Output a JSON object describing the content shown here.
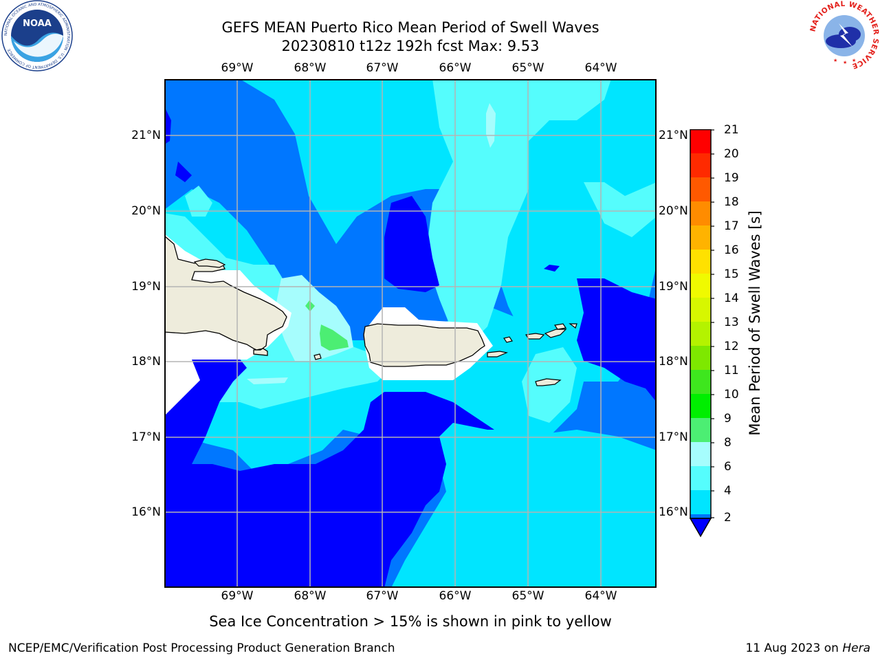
{
  "title": {
    "line1": "GEFS MEAN Puerto Rico Mean Period of Swell Waves",
    "line2": "20230810 t12z 192h fcst   Max: 9.53"
  },
  "map": {
    "lon_labels": [
      "69°W",
      "68°W",
      "67°W",
      "66°W",
      "65°W",
      "64°W"
    ],
    "lat_labels": [
      "21°N",
      "20°N",
      "19°N",
      "18°N",
      "17°N",
      "16°N"
    ],
    "land_color": "#eeecdc"
  },
  "colorbar": {
    "label": "Mean Period of Swell Waves [s]",
    "ticks": [
      "21",
      "20",
      "19",
      "18",
      "17",
      "16",
      "15",
      "14",
      "13",
      "12",
      "11",
      "10",
      "9",
      "8",
      "6",
      "4",
      "2"
    ],
    "colors": {
      "below_2": "#0000ff",
      "2_4": "#0077ff",
      "4_6": "#00e5ff",
      "6_8": "#55fdfd",
      "8_9": "#a6fdfd",
      "9_10": "#4cee73",
      "10_11": "#00ee00",
      "11_12": "#55ee00",
      "12_13": "#aaf300",
      "13_14": "#cdf700",
      "14_15": "#e6fb00",
      "15_16": "#ffff00",
      "16_17": "#ffd900",
      "17_18": "#ffb300",
      "18_19": "#ff8c00",
      "19_20": "#ff5900",
      "20_21": "#ff2a00",
      "above_21": "#ff0000"
    }
  },
  "footer": {
    "note": "Sea Ice Concentration > 15% is shown in pink to yellow",
    "org": "NCEP/EMC/Verification Post Processing Product Generation Branch",
    "date": "11 Aug 2023 on ",
    "host": "Hera"
  },
  "logos": {
    "left": "noaa-logo",
    "right": "nws-logo",
    "left_text": "NOAA",
    "left_ring": "NATIONAL OCEANIC AND ATMOSPHERIC ADMINISTRATION · U.S. DEPARTMENT OF COMMERCE",
    "right_ring": "NATIONAL WEATHER SERVICE"
  }
}
